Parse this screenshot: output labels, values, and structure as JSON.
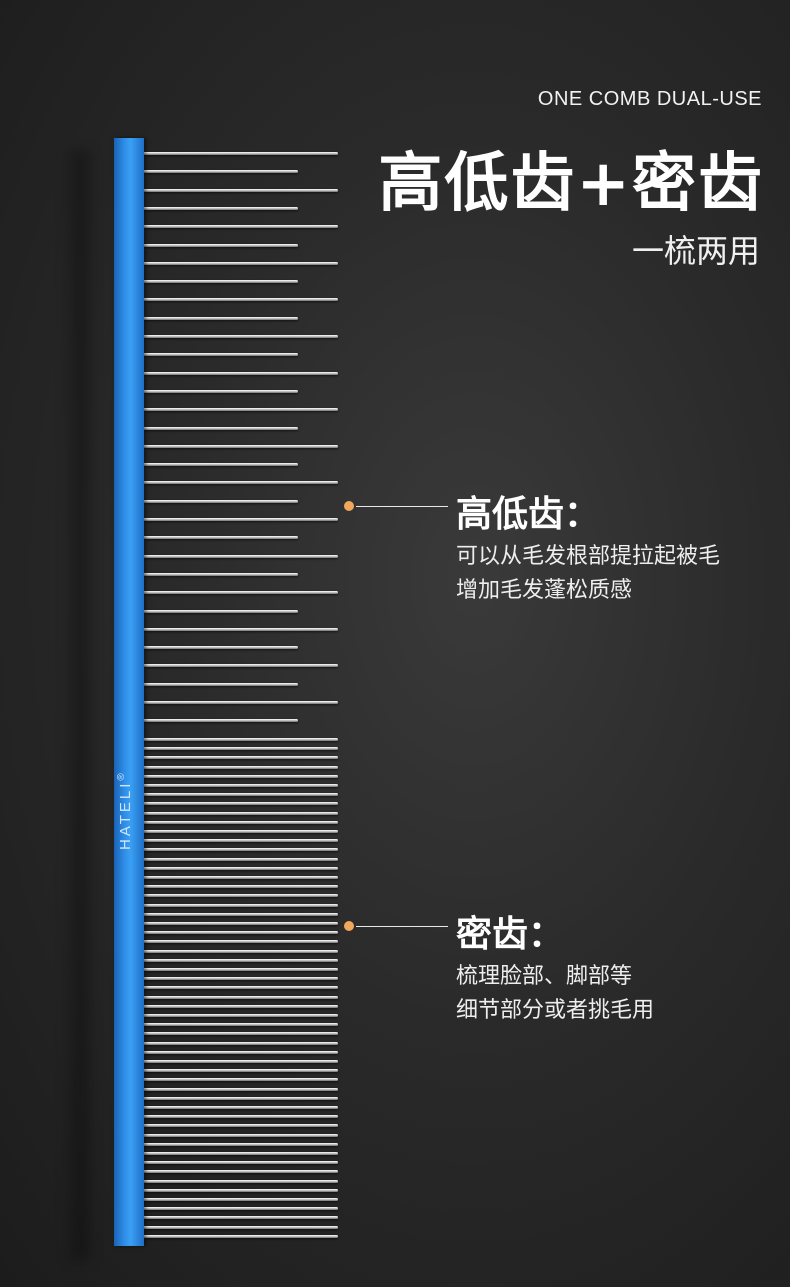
{
  "header": {
    "subtitle_en": "ONE COMB DUAL-USE",
    "title_cn": "高低齿+密齿",
    "tagline": "一梳两用"
  },
  "comb": {
    "brand": "HATELI",
    "registered_mark": "®",
    "spine_color": "#2f8ee8",
    "accent_dot_color": "#f1a85c"
  },
  "callouts": [
    {
      "title": "高低齿：",
      "lines": [
        "可以从毛发根部提拉起被毛",
        "增加毛发蓬松质感"
      ]
    },
    {
      "title": "密齿：",
      "lines": [
        "梳理脸部、脚部等",
        "细节部分或者挑毛用"
      ]
    }
  ]
}
